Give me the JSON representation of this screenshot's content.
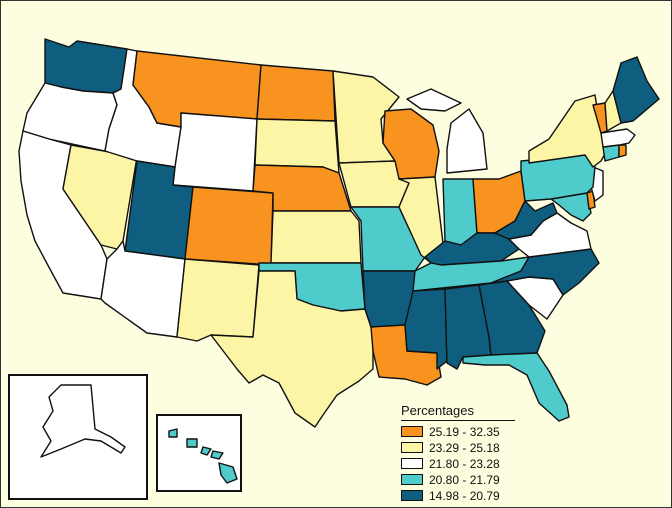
{
  "legend": {
    "title": "Percentages",
    "classes": [
      {
        "label": "25.19 - 32.35",
        "color": "#f7931e"
      },
      {
        "label": "23.29 - 25.18",
        "color": "#fdf5a6"
      },
      {
        "label": "21.80 - 23.28",
        "color": "#ffffff"
      },
      {
        "label": "20.80 - 21.79",
        "color": "#4fcbcb"
      },
      {
        "label": "14.98 - 20.79",
        "color": "#0f5e7f"
      }
    ]
  },
  "states": {
    "Washington": 4,
    "Oregon": 2,
    "California": 2,
    "Nevada": 1,
    "Idaho": 2,
    "Montana": 0,
    "Wyoming": 2,
    "Utah": 4,
    "Arizona": 2,
    "Colorado": 0,
    "New Mexico": 1,
    "North Dakota": 0,
    "South Dakota": 1,
    "Nebraska": 0,
    "Kansas": 1,
    "Oklahoma": 3,
    "Texas": 1,
    "Minnesota": 1,
    "Iowa": 1,
    "Missouri": 3,
    "Arkansas": 4,
    "Louisiana": 0,
    "Wisconsin": 0,
    "Illinois": 1,
    "Michigan": 2,
    "Indiana": 3,
    "Ohio": 0,
    "Kentucky": 4,
    "Tennessee": 3,
    "Mississippi": 4,
    "Alabama": 4,
    "Georgia": 4,
    "Florida": 3,
    "South Carolina": 2,
    "North Carolina": 4,
    "Virginia": 2,
    "West Virginia": 4,
    "Maryland": 3,
    "Delaware": 0,
    "New Jersey": 2,
    "Pennsylvania": 3,
    "New York": 1,
    "Connecticut": 3,
    "Rhode Island": 0,
    "Massachusetts": 2,
    "Vermont": 0,
    "New Hampshire": 1,
    "Maine": 4,
    "Alaska": 2,
    "Hawaii": 3
  }
}
